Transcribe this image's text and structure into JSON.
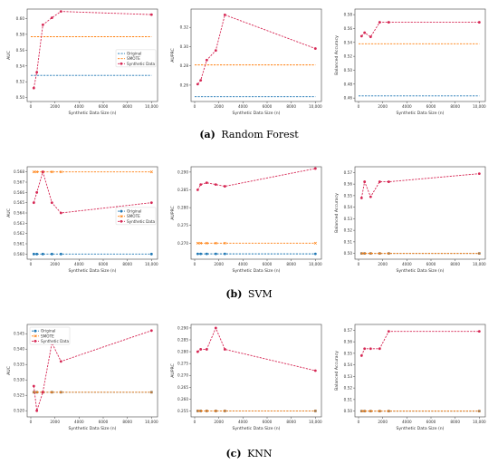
{
  "captions": [
    {
      "letter": "(a)",
      "title": "Random Forest"
    },
    {
      "letter": "(b)",
      "title": "SVM"
    },
    {
      "letter": "(c)",
      "title": "KNN"
    }
  ],
  "colors": {
    "original": "#1f77b4",
    "smote": "#ff7f0e",
    "synthetic": "#d62754"
  },
  "chart_data": [
    {
      "type": "line",
      "row": 0,
      "col": 0,
      "xlabel": "Synthetic Data Size (n)",
      "ylabel": "AUC",
      "xlim": [
        -300,
        10500
      ],
      "ylim": [
        0.495,
        0.612
      ],
      "xticks": [
        "0",
        "2000",
        "4000",
        "6000",
        "8000",
        "10,000"
      ],
      "yticks": [
        "0.50",
        "0.52",
        "0.54",
        "0.56",
        "0.58",
        "0.60"
      ],
      "ytick_values": [
        0.5,
        0.52,
        0.54,
        0.56,
        0.58,
        0.6
      ],
      "legend": "center-right",
      "series": [
        {
          "name": "Original",
          "kind": "original",
          "markers": false,
          "x": [
            0,
            10000
          ],
          "y": [
            0.528,
            0.528
          ]
        },
        {
          "name": "SMOTE",
          "kind": "smote",
          "markers": false,
          "x": [
            0,
            10000
          ],
          "y": [
            0.577,
            0.577
          ]
        },
        {
          "name": "Synthetic Data",
          "kind": "synthetic",
          "markers": true,
          "x": [
            250,
            500,
            1000,
            1750,
            2500,
            10000
          ],
          "y": [
            0.512,
            0.532,
            0.592,
            0.601,
            0.609,
            0.605
          ]
        }
      ]
    },
    {
      "type": "line",
      "row": 0,
      "col": 1,
      "xlabel": "Synthetic Data Size (n)",
      "ylabel": "AUPRC",
      "xlim": [
        -300,
        10500
      ],
      "ylim": [
        0.243,
        0.339
      ],
      "xticks": [
        "0",
        "2000",
        "4000",
        "6000",
        "8000",
        "10,000"
      ],
      "yticks": [
        "0.26",
        "0.28",
        "0.30",
        "0.32"
      ],
      "ytick_values": [
        0.26,
        0.28,
        0.3,
        0.32
      ],
      "legend": "none",
      "series": [
        {
          "name": "Original",
          "kind": "original",
          "markers": false,
          "x": [
            0,
            10000
          ],
          "y": [
            0.248,
            0.248
          ]
        },
        {
          "name": "SMOTE",
          "kind": "smote",
          "markers": false,
          "x": [
            0,
            10000
          ],
          "y": [
            0.281,
            0.281
          ]
        },
        {
          "name": "Synthetic Data",
          "kind": "synthetic",
          "markers": true,
          "x": [
            250,
            500,
            1000,
            1750,
            2500,
            10000
          ],
          "y": [
            0.261,
            0.265,
            0.286,
            0.296,
            0.333,
            0.298
          ]
        }
      ]
    },
    {
      "type": "line",
      "row": 0,
      "col": 2,
      "xlabel": "Synthetic Data Size (n)",
      "ylabel": "Balanced Accuracy",
      "xlim": [
        -300,
        10500
      ],
      "ylim": [
        0.455,
        0.588
      ],
      "xticks": [
        "0",
        "2000",
        "4000",
        "6000",
        "8000",
        "10,000"
      ],
      "yticks": [
        "0.46",
        "0.48",
        "0.50",
        "0.52",
        "0.54",
        "0.56",
        "0.58"
      ],
      "ytick_values": [
        0.46,
        0.48,
        0.5,
        0.52,
        0.54,
        0.56,
        0.58
      ],
      "legend": "none",
      "series": [
        {
          "name": "Original",
          "kind": "original",
          "markers": false,
          "x": [
            0,
            10000
          ],
          "y": [
            0.463,
            0.463
          ]
        },
        {
          "name": "SMOTE",
          "kind": "smote",
          "markers": false,
          "x": [
            0,
            10000
          ],
          "y": [
            0.538,
            0.538
          ]
        },
        {
          "name": "Synthetic Data",
          "kind": "synthetic",
          "markers": true,
          "x": [
            250,
            500,
            1000,
            1750,
            2500,
            10000
          ],
          "y": [
            0.549,
            0.554,
            0.548,
            0.569,
            0.569,
            0.569
          ]
        }
      ]
    },
    {
      "type": "line",
      "row": 1,
      "col": 0,
      "xlabel": "Synthetic Data Size (n)",
      "ylabel": "AUC",
      "xlim": [
        -300,
        10500
      ],
      "ylim": [
        0.5595,
        0.5685
      ],
      "xticks": [
        "0",
        "2000",
        "4000",
        "6000",
        "8000",
        "10,000"
      ],
      "yticks": [
        "0.560",
        "0.561",
        "0.562",
        "0.563",
        "0.564",
        "0.565",
        "0.566",
        "0.567",
        "0.568"
      ],
      "ytick_values": [
        0.56,
        0.561,
        0.562,
        0.563,
        0.564,
        0.565,
        0.566,
        0.567,
        0.568
      ],
      "legend": "center-right",
      "series": [
        {
          "name": "Original",
          "kind": "original",
          "markers": true,
          "x": [
            250,
            500,
            1000,
            1750,
            2500,
            10000
          ],
          "y": [
            0.56,
            0.56,
            0.56,
            0.56,
            0.56,
            0.56
          ]
        },
        {
          "name": "SMOTE",
          "kind": "smote",
          "markers": true,
          "x": [
            250,
            500,
            1000,
            1750,
            2500,
            10000
          ],
          "y": [
            0.568,
            0.568,
            0.568,
            0.568,
            0.568,
            0.568
          ]
        },
        {
          "name": "Synthetic Data",
          "kind": "synthetic",
          "markers": true,
          "x": [
            250,
            500,
            1000,
            1750,
            2500,
            10000
          ],
          "y": [
            0.565,
            0.566,
            0.568,
            0.565,
            0.564,
            0.565
          ]
        }
      ]
    },
    {
      "type": "line",
      "row": 1,
      "col": 1,
      "xlabel": "Synthetic Data Size (n)",
      "ylabel": "AUPRC",
      "xlim": [
        -300,
        10500
      ],
      "ylim": [
        0.2655,
        0.2915
      ],
      "xticks": [
        "0",
        "2000",
        "4000",
        "6000",
        "8000",
        "10,000"
      ],
      "yticks": [
        "0.270",
        "0.275",
        "0.280",
        "0.285",
        "0.290"
      ],
      "ytick_values": [
        0.27,
        0.275,
        0.28,
        0.285,
        0.29
      ],
      "legend": "none",
      "series": [
        {
          "name": "Original",
          "kind": "original",
          "markers": true,
          "x": [
            250,
            500,
            1000,
            1750,
            2500,
            10000
          ],
          "y": [
            0.267,
            0.267,
            0.267,
            0.267,
            0.267,
            0.267
          ]
        },
        {
          "name": "SMOTE",
          "kind": "smote",
          "markers": true,
          "x": [
            250,
            500,
            1000,
            1750,
            2500,
            10000
          ],
          "y": [
            0.27,
            0.27,
            0.27,
            0.27,
            0.27,
            0.27
          ]
        },
        {
          "name": "Synthetic Data",
          "kind": "synthetic",
          "markers": true,
          "x": [
            250,
            500,
            1000,
            1750,
            2500,
            10000
          ],
          "y": [
            0.285,
            0.2865,
            0.287,
            0.2865,
            0.286,
            0.291
          ]
        }
      ]
    },
    {
      "type": "line",
      "row": 1,
      "col": 2,
      "xlabel": "Synthetic Data Size (n)",
      "ylabel": "Balanced Accuracy",
      "xlim": [
        -300,
        10500
      ],
      "ylim": [
        0.495,
        0.575
      ],
      "xticks": [
        "0",
        "2000",
        "4000",
        "6000",
        "8000",
        "10,000"
      ],
      "yticks": [
        "0.50",
        "0.51",
        "0.52",
        "0.53",
        "0.54",
        "0.55",
        "0.56",
        "0.57"
      ],
      "ytick_values": [
        0.5,
        0.51,
        0.52,
        0.53,
        0.54,
        0.55,
        0.56,
        0.57
      ],
      "legend": "none",
      "series": [
        {
          "name": "Original",
          "kind": "original",
          "markers": true,
          "x": [
            250,
            500,
            1000,
            1750,
            2500,
            10000
          ],
          "y": [
            0.5,
            0.5,
            0.5,
            0.5,
            0.5,
            0.5
          ]
        },
        {
          "name": "SMOTE",
          "kind": "smote",
          "markers": true,
          "x": [
            250,
            500,
            1000,
            1750,
            2500,
            10000
          ],
          "y": [
            0.5,
            0.5,
            0.5,
            0.5,
            0.5,
            0.5
          ]
        },
        {
          "name": "Synthetic Data",
          "kind": "synthetic",
          "markers": true,
          "x": [
            250,
            500,
            1000,
            1750,
            2500,
            10000
          ],
          "y": [
            0.548,
            0.562,
            0.549,
            0.562,
            0.562,
            0.569
          ]
        }
      ]
    },
    {
      "type": "line",
      "row": 2,
      "col": 0,
      "xlabel": "Synthetic Data Size (n)",
      "ylabel": "AUC",
      "xlim": [
        -300,
        10500
      ],
      "ylim": [
        0.518,
        0.548
      ],
      "xticks": [
        "0",
        "2000",
        "4000",
        "6000",
        "8000",
        "10,000"
      ],
      "yticks": [
        "0.520",
        "0.525",
        "0.530",
        "0.535",
        "0.540",
        "0.545"
      ],
      "ytick_values": [
        0.52,
        0.525,
        0.53,
        0.535,
        0.54,
        0.545
      ],
      "legend": "top-left",
      "series": [
        {
          "name": "Original",
          "kind": "original",
          "markers": true,
          "x": [
            250,
            500,
            1000,
            1750,
            2500,
            10000
          ],
          "y": [
            0.526,
            0.526,
            0.526,
            0.526,
            0.526,
            0.526
          ]
        },
        {
          "name": "SMOTE",
          "kind": "smote",
          "markers": true,
          "x": [
            250,
            500,
            1000,
            1750,
            2500,
            10000
          ],
          "y": [
            0.526,
            0.526,
            0.526,
            0.526,
            0.526,
            0.526
          ]
        },
        {
          "name": "Synthetic Data",
          "kind": "synthetic",
          "markers": true,
          "x": [
            250,
            500,
            1000,
            1750,
            2500,
            10000
          ],
          "y": [
            0.528,
            0.52,
            0.526,
            0.542,
            0.536,
            0.546
          ]
        }
      ]
    },
    {
      "type": "line",
      "row": 2,
      "col": 1,
      "xlabel": "Synthetic Data Size (n)",
      "ylabel": "AUPRC",
      "xlim": [
        -300,
        10500
      ],
      "ylim": [
        0.2525,
        0.2915
      ],
      "xticks": [
        "0",
        "2000",
        "4000",
        "6000",
        "8000",
        "10,000"
      ],
      "yticks": [
        "0.255",
        "0.260",
        "0.265",
        "0.270",
        "0.275",
        "0.280",
        "0.285",
        "0.290"
      ],
      "ytick_values": [
        0.255,
        0.26,
        0.265,
        0.27,
        0.275,
        0.28,
        0.285,
        0.29
      ],
      "legend": "none",
      "series": [
        {
          "name": "Original",
          "kind": "original",
          "markers": true,
          "x": [
            250,
            500,
            1000,
            1750,
            2500,
            10000
          ],
          "y": [
            0.255,
            0.255,
            0.255,
            0.255,
            0.255,
            0.255
          ]
        },
        {
          "name": "SMOTE",
          "kind": "smote",
          "markers": true,
          "x": [
            250,
            500,
            1000,
            1750,
            2500,
            10000
          ],
          "y": [
            0.255,
            0.255,
            0.255,
            0.255,
            0.255,
            0.255
          ]
        },
        {
          "name": "Synthetic Data",
          "kind": "synthetic",
          "markers": true,
          "x": [
            250,
            500,
            1000,
            1750,
            2500,
            10000
          ],
          "y": [
            0.28,
            0.281,
            0.281,
            0.29,
            0.281,
            0.272
          ]
        }
      ]
    },
    {
      "type": "line",
      "row": 2,
      "col": 2,
      "xlabel": "Synthetic Data Size (n)",
      "ylabel": "Balanced Accuracy",
      "xlim": [
        -300,
        10500
      ],
      "ylim": [
        0.495,
        0.575
      ],
      "xticks": [
        "0",
        "2000",
        "4000",
        "6000",
        "8000",
        "10,000"
      ],
      "yticks": [
        "0.50",
        "0.51",
        "0.52",
        "0.53",
        "0.54",
        "0.55",
        "0.56",
        "0.57"
      ],
      "ytick_values": [
        0.5,
        0.51,
        0.52,
        0.53,
        0.54,
        0.55,
        0.56,
        0.57
      ],
      "legend": "none",
      "series": [
        {
          "name": "Original",
          "kind": "original",
          "markers": true,
          "x": [
            250,
            500,
            1000,
            1750,
            2500,
            10000
          ],
          "y": [
            0.5,
            0.5,
            0.5,
            0.5,
            0.5,
            0.5
          ]
        },
        {
          "name": "SMOTE",
          "kind": "smote",
          "markers": true,
          "x": [
            250,
            500,
            1000,
            1750,
            2500,
            10000
          ],
          "y": [
            0.5,
            0.5,
            0.5,
            0.5,
            0.5,
            0.5
          ]
        },
        {
          "name": "Synthetic Data",
          "kind": "synthetic",
          "markers": true,
          "x": [
            250,
            500,
            1000,
            1750,
            2500,
            10000
          ],
          "y": [
            0.548,
            0.554,
            0.554,
            0.554,
            0.569,
            0.569
          ]
        }
      ]
    }
  ]
}
